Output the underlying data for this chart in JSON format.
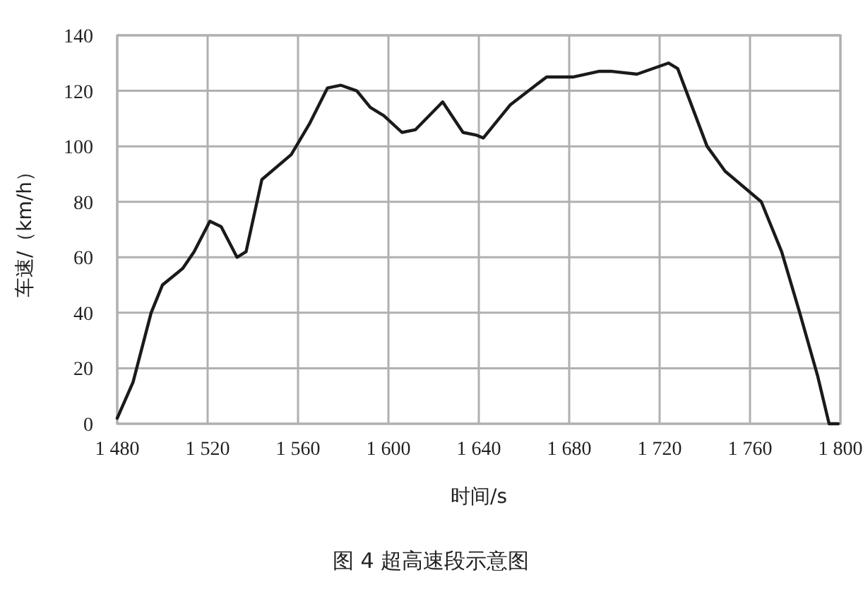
{
  "chart_data": {
    "type": "line",
    "xlabel": "时间/s",
    "ylabel": "车速/（km/h）",
    "annotations": [
      "图 4  超高速段示意图"
    ],
    "x": [
      1480,
      1487,
      1495,
      1500,
      1509,
      1514,
      1521,
      1526,
      1533,
      1537,
      1544,
      1557,
      1565,
      1573,
      1579,
      1586,
      1592,
      1598,
      1606,
      1612,
      1624,
      1633,
      1639,
      1642,
      1654,
      1670,
      1682,
      1693,
      1699,
      1710,
      1724,
      1728,
      1741,
      1749,
      1765,
      1774,
      1782,
      1790,
      1795,
      1799
    ],
    "series": [
      {
        "color": "#1a1a1a",
        "values": [
          2,
          15,
          40,
          50,
          56,
          62,
          73,
          71,
          60,
          62,
          88,
          97,
          108,
          121,
          122,
          120,
          114,
          111,
          105,
          106,
          116,
          105,
          104,
          103,
          115,
          125,
          125,
          127,
          127,
          126,
          130,
          128,
          100,
          91,
          80,
          62,
          40,
          17,
          0,
          0
        ]
      }
    ],
    "xlim": [
      1480,
      1800
    ],
    "ylim": [
      0,
      140
    ],
    "xticks": [
      {
        "value": 1480,
        "label": "1 480"
      },
      {
        "value": 1520,
        "label": "1 520"
      },
      {
        "value": 1560,
        "label": "1 560"
      },
      {
        "value": 1600,
        "label": "1 600"
      },
      {
        "value": 1640,
        "label": "1 640"
      },
      {
        "value": 1680,
        "label": "1 680"
      },
      {
        "value": 1720,
        "label": "1 720"
      },
      {
        "value": 1760,
        "label": "1 760"
      },
      {
        "value": 1800,
        "label": "1 800"
      }
    ],
    "yticks": [
      0,
      20,
      40,
      60,
      80,
      100,
      120,
      140
    ],
    "grid": true
  }
}
